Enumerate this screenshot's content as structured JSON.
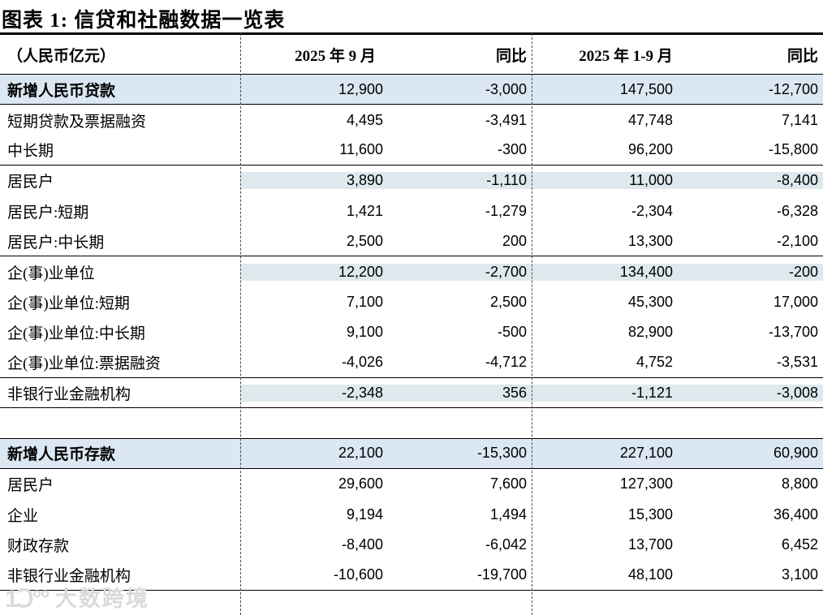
{
  "title": "图表 1: 信贷和社融数据一览表",
  "table": {
    "header": {
      "unit_label": "（人民币亿元）",
      "col_month": "2025 年 9 月",
      "col_yoy1": "同比",
      "col_cumulative": "2025 年 1-9 月",
      "col_yoy2": "同比"
    },
    "rows": [
      {
        "label": "新增人民币贷款",
        "values": [
          "12,900",
          "-3,000",
          "147,500",
          "-12,700"
        ],
        "highlight": "full",
        "bold": true,
        "line_below": true
      },
      {
        "label": "短期贷款及票据融资",
        "values": [
          "4,495",
          "-3,491",
          "47,748",
          "7,141"
        ],
        "highlight": "none",
        "bold": false,
        "line_below": false
      },
      {
        "label": "中长期",
        "values": [
          "11,600",
          "-300",
          "96,200",
          "-15,800"
        ],
        "highlight": "none",
        "bold": false,
        "line_below": true
      },
      {
        "label": "居民户",
        "values": [
          "3,890",
          "-1,110",
          "11,000",
          "-8,400"
        ],
        "highlight": "data",
        "bold": false,
        "line_below": false
      },
      {
        "label": "居民户:短期",
        "values": [
          "1,421",
          "-1,279",
          "-2,304",
          "-6,328"
        ],
        "highlight": "none",
        "bold": false,
        "line_below": false
      },
      {
        "label": "居民户:中长期",
        "values": [
          "2,500",
          "200",
          "13,300",
          "-2,100"
        ],
        "highlight": "none",
        "bold": false,
        "line_below": true
      },
      {
        "label": "企(事)业单位",
        "values": [
          "12,200",
          "-2,700",
          "134,400",
          "-200"
        ],
        "highlight": "data",
        "bold": false,
        "line_below": false
      },
      {
        "label": "企(事)业单位:短期",
        "values": [
          "7,100",
          "2,500",
          "45,300",
          "17,000"
        ],
        "highlight": "none",
        "bold": false,
        "line_below": false
      },
      {
        "label": "企(事)业单位:中长期",
        "values": [
          "9,100",
          "-500",
          "82,900",
          "-13,700"
        ],
        "highlight": "none",
        "bold": false,
        "line_below": false
      },
      {
        "label": "企(事)业单位:票据融资",
        "values": [
          "-4,026",
          "-4,712",
          "4,752",
          "-3,531"
        ],
        "highlight": "none",
        "bold": false,
        "line_below": true
      },
      {
        "label": "非银行业金融机构",
        "values": [
          "-2,348",
          "356",
          "-1,121",
          "-3,008"
        ],
        "highlight": "data",
        "bold": false,
        "line_below": true
      },
      {
        "label": "",
        "values": [
          "",
          "",
          "",
          ""
        ],
        "highlight": "none",
        "bold": false,
        "line_below": true,
        "spacer": true
      },
      {
        "label": "新增人民币存款",
        "values": [
          "22,100",
          "-15,300",
          "227,100",
          "60,900"
        ],
        "highlight": "full",
        "bold": true,
        "line_below": true
      },
      {
        "label": "居民户",
        "values": [
          "29,600",
          "7,600",
          "127,300",
          "8,800"
        ],
        "highlight": "none",
        "bold": false,
        "line_below": false
      },
      {
        "label": "企业",
        "values": [
          "9,194",
          "1,494",
          "15,300",
          "36,400"
        ],
        "highlight": "none",
        "bold": false,
        "line_below": false
      },
      {
        "label": "财政存款",
        "values": [
          "-8,400",
          "-6,042",
          "13,700",
          "6,452"
        ],
        "highlight": "none",
        "bold": false,
        "line_below": false
      },
      {
        "label": "非银行业金融机构",
        "values": [
          "-10,600",
          "-19,700",
          "48,100",
          "3,100"
        ],
        "highlight": "none",
        "bold": false,
        "line_below": true
      }
    ]
  },
  "watermark": {
    "logo": "1ꓛ°°",
    "text": "大数跨境"
  },
  "colors": {
    "highlight_section": "#dbe7f2",
    "highlight_sub": "#dee9ee",
    "line": "#000000"
  }
}
